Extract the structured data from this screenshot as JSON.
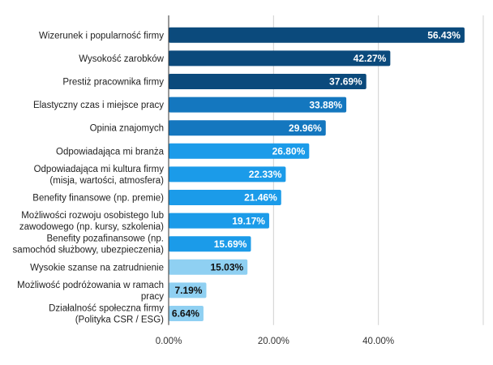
{
  "chart_data": {
    "type": "bar",
    "orientation": "horizontal",
    "title": "",
    "xlabel": "",
    "ylabel": "",
    "xlim": [
      0,
      60
    ],
    "x_ticks": [
      0,
      20,
      40
    ],
    "x_tick_labels": [
      "0.00%",
      "20.00%",
      "40.00%"
    ],
    "grid": true,
    "categories": [
      [
        "Wizerunek i popularność firmy"
      ],
      [
        "Wysokość zarobków"
      ],
      [
        "Prestiż pracownika firmy"
      ],
      [
        "Elastyczny czas i miejsce pracy"
      ],
      [
        "Opinia znajomych"
      ],
      [
        "Odpowiadająca mi branża"
      ],
      [
        "Odpowiadająca mi kultura firmy",
        "(misja, wartości, atmosfera)"
      ],
      [
        "Benefity finansowe (np. premie)"
      ],
      [
        "Możliwości rozwoju osobistego lub",
        "zawodowego (np. kursy, szkolenia)"
      ],
      [
        "Benefity pozafinansowe (np.",
        "samochód służbowy, ubezpieczenia)"
      ],
      [
        "Wysokie szanse na zatrudnienie"
      ],
      [
        "Możliwość podróżowania w ramach",
        "pracy"
      ],
      [
        "Działalność społeczna firmy",
        "(Polityka CSR / ESG)"
      ]
    ],
    "values": [
      56.43,
      42.27,
      37.69,
      33.88,
      29.96,
      26.8,
      22.33,
      21.46,
      19.17,
      15.69,
      15.03,
      7.19,
      6.64
    ],
    "value_labels": [
      "56.43%",
      "42.27%",
      "37.69%",
      "33.88%",
      "29.96%",
      "26.80%",
      "22.33%",
      "21.46%",
      "19.17%",
      "15.69%",
      "15.03%",
      "7.19%",
      "6.64%"
    ],
    "bar_colors": [
      "#0b4a7c",
      "#0b4a7c",
      "#0b4a7c",
      "#1477bf",
      "#1477bf",
      "#1b9be9",
      "#1b9be9",
      "#1b9be9",
      "#1b9be9",
      "#1b9be9",
      "#8fd0f2",
      "#8fd0f2",
      "#8fd0f2"
    ],
    "label_colors": [
      "#ffffff",
      "#ffffff",
      "#ffffff",
      "#ffffff",
      "#ffffff",
      "#ffffff",
      "#ffffff",
      "#ffffff",
      "#ffffff",
      "#ffffff",
      "#111111",
      "#111111",
      "#111111"
    ],
    "gridline_color": "#d0d0d0",
    "axis_color": "#333333"
  }
}
